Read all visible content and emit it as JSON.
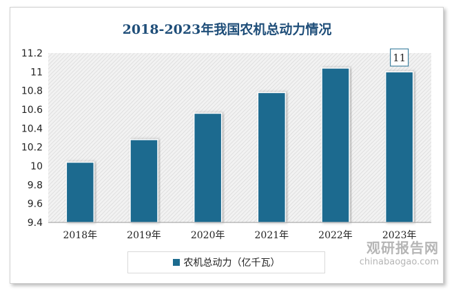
{
  "chart_data": {
    "type": "bar",
    "title": "2018-2023年我国农机总动力情况",
    "categories": [
      "2018年",
      "2019年",
      "2020年",
      "2021年",
      "2022年",
      "2023年"
    ],
    "series": [
      {
        "name": "农机总动力（亿千瓦）",
        "values": [
          10.04,
          10.28,
          10.56,
          10.78,
          11.04,
          11.0
        ]
      }
    ],
    "data_labels": [
      {
        "category": "2023年",
        "text": "11"
      }
    ],
    "ylim": [
      9.4,
      11.2
    ],
    "yticks": [
      "9.4",
      "9.6",
      "9.8",
      "10",
      "10.2",
      "10.4",
      "10.6",
      "10.8",
      "11",
      "11.2"
    ],
    "xlabel": "",
    "ylabel": "",
    "grid": false,
    "legend": "bottom",
    "bar_color": "#1c6b8f"
  },
  "watermark": {
    "name": "观研报告网",
    "url": "chinabaogao.com"
  }
}
